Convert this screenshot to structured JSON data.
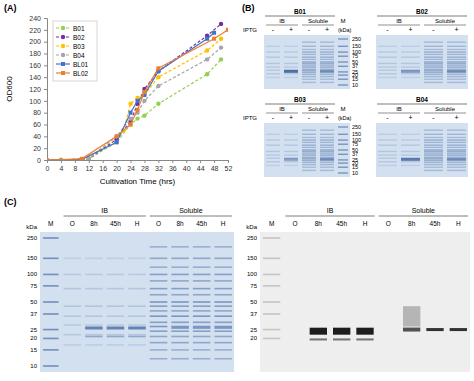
{
  "chart_data": {
    "type": "line",
    "title": "(A)",
    "x_label": "Cultivation Time (hrs)",
    "y_label": "OD600",
    "xlim": [
      0,
      52
    ],
    "xticks": [
      0,
      4,
      8,
      12,
      16,
      20,
      24,
      28,
      32,
      36,
      40,
      44,
      48,
      52
    ],
    "ylim": [
      0,
      240
    ],
    "yticks": [
      0,
      20,
      40,
      60,
      80,
      100,
      120,
      140,
      160,
      180,
      200,
      220,
      240
    ],
    "grid": false,
    "legend": "upper left",
    "series": [
      {
        "name": "B01",
        "color": "#92d050",
        "line_style": "dashed",
        "marker": "circle",
        "x": [
          0,
          4,
          12,
          20,
          24,
          26,
          28,
          32,
          46,
          50
        ],
        "values": [
          0,
          0,
          2,
          30,
          60,
          70,
          75,
          95,
          145,
          170
        ]
      },
      {
        "name": "B02",
        "color": "#7030a0",
        "line_style": "dashed",
        "marker": "circle",
        "x": [
          0,
          4,
          12,
          20,
          24,
          26,
          28,
          32,
          46,
          50
        ],
        "values": [
          0,
          0,
          2,
          35,
          65,
          95,
          120,
          150,
          210,
          230
        ]
      },
      {
        "name": "B03",
        "color": "#ffc000",
        "line_style": "dashed",
        "marker": "circle",
        "x": [
          0,
          4,
          12,
          22,
          24,
          26,
          28,
          32,
          46,
          50
        ],
        "values": [
          0,
          0,
          3,
          50,
          95,
          105,
          110,
          140,
          185,
          205
        ]
      },
      {
        "name": "B04",
        "color": "#a5a5a5",
        "line_style": "dashed",
        "marker": "circle",
        "x": [
          0,
          4,
          12,
          20,
          24,
          26,
          28,
          32,
          46,
          50
        ],
        "values": [
          0,
          0,
          2,
          40,
          70,
          80,
          100,
          125,
          170,
          190
        ]
      },
      {
        "name": "BL01",
        "color": "#4472c4",
        "line_style": "solid",
        "marker": "square",
        "x": [
          0,
          10,
          20,
          24,
          26,
          28,
          32,
          46,
          48
        ],
        "values": [
          0,
          1,
          30,
          80,
          100,
          110,
          150,
          205,
          215
        ]
      },
      {
        "name": "BL02",
        "color": "#ed7d31",
        "line_style": "solid",
        "marker": "square",
        "x": [
          0,
          10,
          20,
          24,
          26,
          28,
          32,
          48,
          52
        ],
        "values": [
          0,
          2,
          40,
          60,
          85,
          115,
          155,
          205,
          220
        ]
      }
    ]
  },
  "panel_b": {
    "label": "(B)",
    "rows": [
      {
        "iptg": "IPTG",
        "marker_lane": "M",
        "unit": "(kDa)",
        "ladder": [
          250,
          150,
          100,
          75,
          50,
          37,
          25,
          20,
          15,
          10
        ],
        "gels": [
          {
            "name": "B01",
            "groups": [
              {
                "name": "IB",
                "lanes": [
                  "-",
                  "+"
                ]
              },
              {
                "name": "Soluble",
                "lanes": [
                  "-",
                  "+"
                ]
              }
            ]
          },
          {
            "name": "B02",
            "groups": [
              {
                "name": "IB",
                "lanes": [
                  "-",
                  "+"
                ]
              },
              {
                "name": "Soluble",
                "lanes": [
                  "-",
                  "+"
                ]
              }
            ]
          }
        ]
      },
      {
        "iptg": "IPTG",
        "marker_lane": "M",
        "unit": "(kDa)",
        "ladder": [
          250,
          150,
          100,
          75,
          50,
          37,
          25,
          20,
          15,
          10
        ],
        "gels": [
          {
            "name": "B03",
            "groups": [
              {
                "name": "IB",
                "lanes": [
                  "-",
                  "+"
                ]
              },
              {
                "name": "Soluble",
                "lanes": [
                  "-",
                  "+"
                ]
              }
            ]
          },
          {
            "name": "B04",
            "groups": [
              {
                "name": "IB",
                "lanes": [
                  "-",
                  "+"
                ]
              },
              {
                "name": "Soluble",
                "lanes": [
                  "-",
                  "+"
                ]
              }
            ]
          }
        ]
      }
    ]
  },
  "panel_c": {
    "label": "(C)",
    "blots": [
      {
        "unit": "kDa",
        "marker_lane": "M",
        "ladder": [
          250,
          150,
          100,
          75,
          50,
          37,
          25,
          20,
          15,
          10
        ],
        "groups": [
          {
            "name": "IB",
            "lanes": [
              "O",
              "8h",
              "45h",
              "H"
            ]
          },
          {
            "name": "Soluble",
            "lanes": [
              "O",
              "8h",
              "45h",
              "H"
            ]
          }
        ]
      },
      {
        "unit": "kDa",
        "marker_lane": "M",
        "ladder": [
          250,
          150,
          100,
          75,
          50,
          37,
          25,
          20
        ],
        "groups": [
          {
            "name": "IB",
            "lanes": [
              "O",
              "8h",
              "45h",
              "H"
            ]
          },
          {
            "name": "Soluble",
            "lanes": [
              "O",
              "8h",
              "45h",
              "H"
            ]
          }
        ]
      }
    ]
  }
}
